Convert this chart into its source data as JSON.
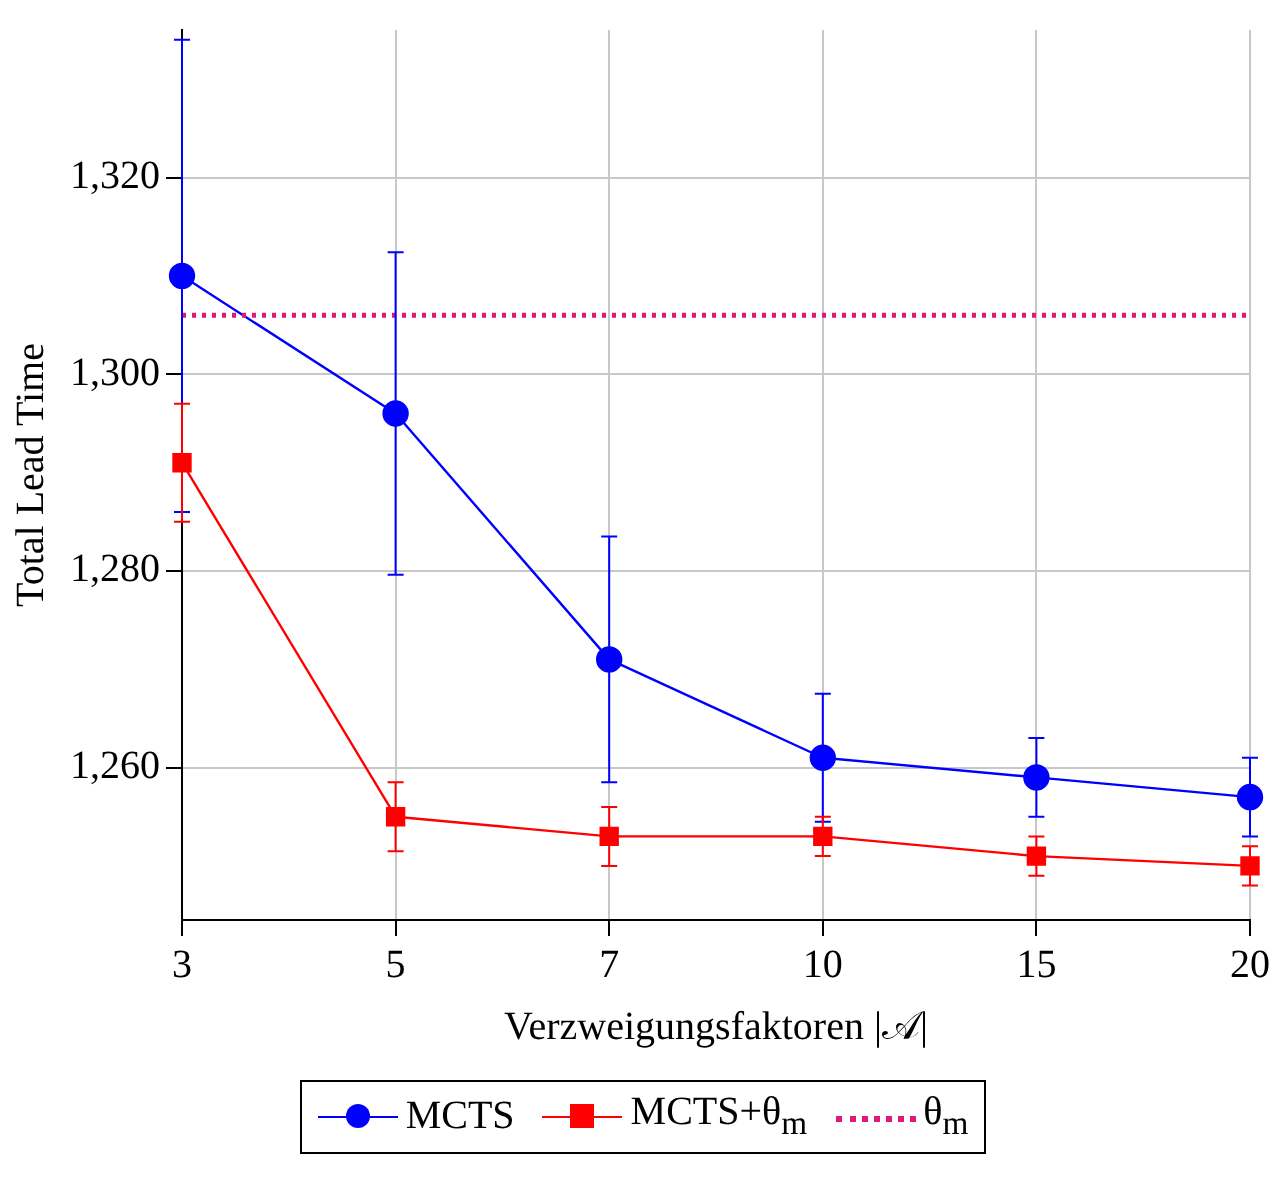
{
  "chart_data": {
    "type": "line",
    "xlabel": "Verzweigungsfaktoren |𝒜|",
    "ylabel": "Total Lead Time",
    "categories": [
      "3",
      "5",
      "7",
      "10",
      "15",
      "20"
    ],
    "series": [
      {
        "name": "MCTS",
        "color": "#0000ff",
        "marker": "circle",
        "values": [
          1310,
          1296,
          1271,
          1261,
          1259,
          1257
        ],
        "errors": [
          24,
          16.4,
          12.5,
          6.5,
          4,
          4
        ]
      },
      {
        "name": "MCTS+θ$_{m}$",
        "color": "#ff0000",
        "marker": "square",
        "values": [
          1291,
          1255,
          1253,
          1253,
          1251,
          1250
        ],
        "errors": [
          6,
          3.5,
          3,
          2,
          2,
          2
        ]
      }
    ],
    "ref_lines": [
      {
        "axis": "y",
        "value": 1306,
        "label": "θ$_{m}$",
        "color": "#e0187a",
        "line_style": "dotted"
      }
    ],
    "ylim": [
      1244.5,
      1335
    ],
    "yticks": [
      {
        "value": 1260,
        "label": "1,260"
      },
      {
        "value": 1280,
        "label": "1,280"
      },
      {
        "value": 1300,
        "label": "1,300"
      },
      {
        "value": 1320,
        "label": "1,320"
      }
    ],
    "grid": true,
    "legend": "bottom"
  }
}
